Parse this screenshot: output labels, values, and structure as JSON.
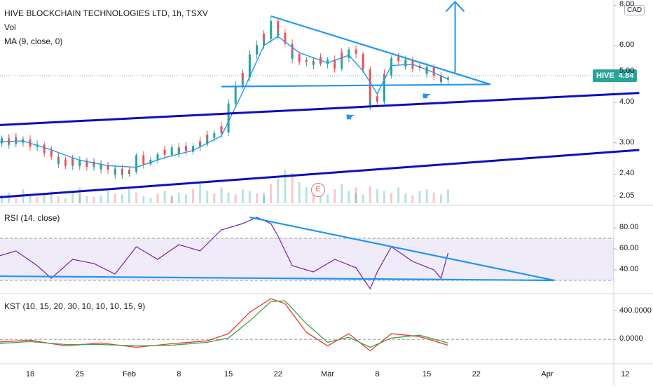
{
  "header": {
    "symbol_line": "HIVE BLOCKCHAIN TECHNOLOGIES LTD, 1h, TSXV",
    "vol_label": "Vol",
    "ma_label": "MA (9, close, 0)",
    "currency": "CAD"
  },
  "price_tag": {
    "ticker": "HIVE",
    "value": "4.84"
  },
  "earnings_marker": "E",
  "colors": {
    "up": "#26a69a",
    "down": "#ef5350",
    "ma": "#2196f3",
    "trendline_light": "#2196f3",
    "channel_dark": "#0d0dbf",
    "rsi": "#7b1fa2",
    "rsi_band": "#7e57c2",
    "kst": "#e53935",
    "kst_signal": "#43a047"
  },
  "chart_data": [
    {
      "type": "candlestick",
      "title": "HIVE BLOCKCHAIN TECHNOLOGIES LTD, 1h, TSXV",
      "scale": "log",
      "yticks": [
        "8.00",
        "6.00",
        "5.00",
        "4.00",
        "3.00",
        "2.40",
        "2.05"
      ],
      "ylim": [
        1.95,
        8.3
      ],
      "last_price": 4.84,
      "x_ticks": [
        "18",
        "25",
        "Feb",
        "8",
        "15",
        "22",
        "Mar",
        "8",
        "15",
        "22",
        "Apr",
        "12"
      ],
      "x_tick_dates": [
        "2021-01-18",
        "2021-01-25",
        "2021-02-01",
        "2021-02-08",
        "2021-02-15",
        "2021-02-22",
        "2021-03-01",
        "2021-03-08",
        "2021-03-15",
        "2021-03-22",
        "2021-04-01",
        "2021-04-12"
      ],
      "close": [
        {
          "x": "2021-01-13",
          "y": 3.1
        },
        {
          "x": "2021-01-15",
          "y": 3.02
        },
        {
          "x": "2021-01-17",
          "y": 3.08
        },
        {
          "x": "2021-01-19",
          "y": 2.9
        },
        {
          "x": "2021-01-21",
          "y": 2.78
        },
        {
          "x": "2021-01-22",
          "y": 2.6
        },
        {
          "x": "2021-01-24",
          "y": 2.62
        },
        {
          "x": "2021-01-26",
          "y": 2.58
        },
        {
          "x": "2021-01-28",
          "y": 2.55
        },
        {
          "x": "2021-01-30",
          "y": 2.45
        },
        {
          "x": "2021-02-01",
          "y": 2.42
        },
        {
          "x": "2021-02-02",
          "y": 2.68
        },
        {
          "x": "2021-02-04",
          "y": 2.6
        },
        {
          "x": "2021-02-06",
          "y": 2.82
        },
        {
          "x": "2021-02-08",
          "y": 2.85
        },
        {
          "x": "2021-02-10",
          "y": 2.88
        },
        {
          "x": "2021-02-12",
          "y": 3.1
        },
        {
          "x": "2021-02-14",
          "y": 3.3
        },
        {
          "x": "2021-02-15",
          "y": 3.9
        },
        {
          "x": "2021-02-17",
          "y": 4.9
        },
        {
          "x": "2021-02-18",
          "y": 5.5
        },
        {
          "x": "2021-02-20",
          "y": 6.4
        },
        {
          "x": "2021-02-21",
          "y": 7.0
        },
        {
          "x": "2021-02-22",
          "y": 6.6
        },
        {
          "x": "2021-02-24",
          "y": 5.6
        },
        {
          "x": "2021-02-26",
          "y": 5.3
        },
        {
          "x": "2021-02-28",
          "y": 5.4
        },
        {
          "x": "2021-03-02",
          "y": 5.2
        },
        {
          "x": "2021-03-03",
          "y": 5.6
        },
        {
          "x": "2021-03-05",
          "y": 5.8
        },
        {
          "x": "2021-03-06",
          "y": 5.1
        },
        {
          "x": "2021-03-07",
          "y": 4.0
        },
        {
          "x": "2021-03-08",
          "y": 4.1
        },
        {
          "x": "2021-03-09",
          "y": 4.8
        },
        {
          "x": "2021-03-10",
          "y": 5.5
        },
        {
          "x": "2021-03-12",
          "y": 5.3
        },
        {
          "x": "2021-03-14",
          "y": 5.1
        },
        {
          "x": "2021-03-16",
          "y": 4.95
        },
        {
          "x": "2021-03-17",
          "y": 4.6
        },
        {
          "x": "2021-03-18",
          "y": 4.84
        }
      ],
      "moving_average": {
        "name": "MA (9, close, 0)",
        "points": [
          {
            "x": "2021-01-13",
            "y": 3.02
          },
          {
            "x": "2021-01-17",
            "y": 3.04
          },
          {
            "x": "2021-01-21",
            "y": 2.85
          },
          {
            "x": "2021-01-25",
            "y": 2.65
          },
          {
            "x": "2021-01-29",
            "y": 2.55
          },
          {
            "x": "2021-02-02",
            "y": 2.52
          },
          {
            "x": "2021-02-06",
            "y": 2.7
          },
          {
            "x": "2021-02-10",
            "y": 2.84
          },
          {
            "x": "2021-02-14",
            "y": 3.15
          },
          {
            "x": "2021-02-17",
            "y": 4.3
          },
          {
            "x": "2021-02-20",
            "y": 6.0
          },
          {
            "x": "2021-02-22",
            "y": 6.4
          },
          {
            "x": "2021-02-25",
            "y": 5.7
          },
          {
            "x": "2021-03-01",
            "y": 5.3
          },
          {
            "x": "2021-03-04",
            "y": 5.6
          },
          {
            "x": "2021-03-06",
            "y": 5.0
          },
          {
            "x": "2021-03-08",
            "y": 4.25
          },
          {
            "x": "2021-03-10",
            "y": 5.2
          },
          {
            "x": "2021-03-13",
            "y": 5.25
          },
          {
            "x": "2021-03-16",
            "y": 4.95
          },
          {
            "x": "2021-03-18",
            "y": 4.72
          }
        ]
      },
      "volume": {
        "name": "Vol",
        "x_range": [
          "2021-01-13",
          "2021-03-18"
        ],
        "values": [
          35,
          20,
          25,
          30,
          15,
          40,
          22,
          18,
          28,
          35,
          20,
          15,
          30,
          25,
          45,
          20,
          18,
          22,
          35,
          28,
          25,
          40,
          30,
          20,
          15,
          28,
          35,
          22,
          18,
          30,
          25,
          40,
          55,
          35,
          28,
          45,
          30,
          25,
          40,
          35,
          28,
          22,
          30,
          55,
          70,
          95,
          85,
          60,
          45,
          38,
          30,
          25,
          40,
          55,
          35,
          45,
          30,
          25,
          48,
          40,
          35,
          30,
          45,
          28,
          22,
          35,
          40,
          30,
          25,
          38
        ]
      },
      "annotations": [
        {
          "type": "arrow-up",
          "x": "2021-03-19",
          "y_from": 4.95,
          "y_to": 8.2
        },
        {
          "type": "earnings",
          "label": "E",
          "x": "2021-02-28"
        },
        {
          "type": "pointer",
          "x": "2021-03-06",
          "y": 3.8
        },
        {
          "type": "pointer",
          "x": "2021-03-16",
          "y": 4.15
        }
      ],
      "trendlines": [
        {
          "role": "triangle-upper",
          "from": {
            "x": "2021-02-21",
            "y": 7.4
          },
          "to": {
            "x": "2021-03-24",
            "y": 4.55
          }
        },
        {
          "role": "triangle-base",
          "from": {
            "x": "2021-02-14",
            "y": 4.48
          },
          "to": {
            "x": "2021-03-24",
            "y": 4.55
          }
        },
        {
          "role": "channel-upper",
          "from": {
            "x": "2021-01-13",
            "y": 3.4
          },
          "to": {
            "x": "2021-04-14",
            "y": 4.28
          }
        },
        {
          "role": "channel-lower",
          "from": {
            "x": "2021-01-13",
            "y": 2.03
          },
          "to": {
            "x": "2021-04-14",
            "y": 2.85
          }
        }
      ]
    },
    {
      "type": "line",
      "title": "RSI (14, close)",
      "yticks": [
        "80.00",
        "60.00",
        "40.00"
      ],
      "ylim": [
        18,
        100
      ],
      "band": [
        30,
        70
      ],
      "points": [
        {
          "x": "2021-01-13",
          "y": 52
        },
        {
          "x": "2021-01-16",
          "y": 58
        },
        {
          "x": "2021-01-19",
          "y": 44
        },
        {
          "x": "2021-01-21",
          "y": 32
        },
        {
          "x": "2021-01-24",
          "y": 50
        },
        {
          "x": "2021-01-27",
          "y": 46
        },
        {
          "x": "2021-01-30",
          "y": 36
        },
        {
          "x": "2021-02-02",
          "y": 62
        },
        {
          "x": "2021-02-05",
          "y": 50
        },
        {
          "x": "2021-02-08",
          "y": 64
        },
        {
          "x": "2021-02-11",
          "y": 58
        },
        {
          "x": "2021-02-14",
          "y": 78
        },
        {
          "x": "2021-02-17",
          "y": 84
        },
        {
          "x": "2021-02-19",
          "y": 90
        },
        {
          "x": "2021-02-21",
          "y": 84
        },
        {
          "x": "2021-02-22",
          "y": 72
        },
        {
          "x": "2021-02-24",
          "y": 44
        },
        {
          "x": "2021-02-27",
          "y": 38
        },
        {
          "x": "2021-03-02",
          "y": 50
        },
        {
          "x": "2021-03-05",
          "y": 42
        },
        {
          "x": "2021-03-07",
          "y": 22
        },
        {
          "x": "2021-03-08",
          "y": 38
        },
        {
          "x": "2021-03-10",
          "y": 62
        },
        {
          "x": "2021-03-13",
          "y": 48
        },
        {
          "x": "2021-03-16",
          "y": 40
        },
        {
          "x": "2021-03-17",
          "y": 32
        },
        {
          "x": "2021-03-18",
          "y": 56
        }
      ],
      "trendlines": [
        {
          "role": "upper",
          "from": {
            "x": "2021-02-18",
            "y": 90
          },
          "to": {
            "x": "2021-04-02",
            "y": 30
          }
        },
        {
          "role": "lower",
          "from": {
            "x": "2021-01-13",
            "y": 34
          },
          "to": {
            "x": "2021-04-02",
            "y": 30
          }
        }
      ]
    },
    {
      "type": "line",
      "title": "KST (10, 15, 20, 30, 10, 10, 10, 15, 9)",
      "yticks": [
        "400.0000",
        "0.0000"
      ],
      "ylim": [
        -330,
        620
      ],
      "zero_line": 0,
      "series": [
        {
          "name": "KST",
          "color": "#e53935",
          "points": [
            {
              "x": "2021-01-13",
              "y": -40
            },
            {
              "x": "2021-01-18",
              "y": -10
            },
            {
              "x": "2021-01-23",
              "y": -90
            },
            {
              "x": "2021-01-28",
              "y": -50
            },
            {
              "x": "2021-02-02",
              "y": -110
            },
            {
              "x": "2021-02-07",
              "y": -60
            },
            {
              "x": "2021-02-12",
              "y": -20
            },
            {
              "x": "2021-02-15",
              "y": 80
            },
            {
              "x": "2021-02-18",
              "y": 380
            },
            {
              "x": "2021-02-21",
              "y": 570
            },
            {
              "x": "2021-02-23",
              "y": 500
            },
            {
              "x": "2021-02-26",
              "y": 100
            },
            {
              "x": "2021-03-01",
              "y": -90
            },
            {
              "x": "2021-03-04",
              "y": 80
            },
            {
              "x": "2021-03-07",
              "y": -160
            },
            {
              "x": "2021-03-10",
              "y": 80
            },
            {
              "x": "2021-03-14",
              "y": 40
            },
            {
              "x": "2021-03-18",
              "y": -80
            }
          ]
        },
        {
          "name": "KST signal",
          "color": "#43a047",
          "points": [
            {
              "x": "2021-01-13",
              "y": -60
            },
            {
              "x": "2021-01-18",
              "y": -30
            },
            {
              "x": "2021-01-23",
              "y": -70
            },
            {
              "x": "2021-01-28",
              "y": -70
            },
            {
              "x": "2021-02-02",
              "y": -90
            },
            {
              "x": "2021-02-07",
              "y": -80
            },
            {
              "x": "2021-02-12",
              "y": -40
            },
            {
              "x": "2021-02-15",
              "y": 20
            },
            {
              "x": "2021-02-18",
              "y": 260
            },
            {
              "x": "2021-02-21",
              "y": 530
            },
            {
              "x": "2021-02-23",
              "y": 540
            },
            {
              "x": "2021-02-26",
              "y": 220
            },
            {
              "x": "2021-03-01",
              "y": -40
            },
            {
              "x": "2021-03-04",
              "y": 30
            },
            {
              "x": "2021-03-07",
              "y": -110
            },
            {
              "x": "2021-03-10",
              "y": 20
            },
            {
              "x": "2021-03-14",
              "y": 60
            },
            {
              "x": "2021-03-18",
              "y": -50
            }
          ]
        }
      ]
    }
  ]
}
